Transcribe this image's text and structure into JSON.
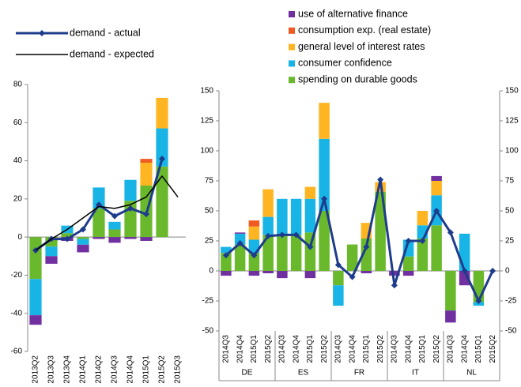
{
  "chart_data": [
    {
      "type": "bar",
      "categories": [
        "2013Q2",
        "2013Q3",
        "2013Q4",
        "2014Q1",
        "2014Q2",
        "2014Q3",
        "2014Q4",
        "2015Q1",
        "2015Q2",
        "2015Q3"
      ],
      "ylim": [
        -60,
        80
      ],
      "yticks": [
        -60,
        -40,
        -20,
        0,
        20,
        40,
        60,
        80
      ],
      "series": [
        {
          "name": "use of alternative finance",
          "color": "#7030a0",
          "values": [
            -5,
            -4,
            -2,
            -4,
            -1,
            -3,
            -1,
            -2,
            0,
            0
          ]
        },
        {
          "name": "consumption exp. (real estate)",
          "color": "#f05a23",
          "values": [
            0,
            0,
            0,
            0,
            0,
            0,
            0,
            2,
            0,
            0
          ]
        },
        {
          "name": "general level of interest rates",
          "color": "#ffb422",
          "values": [
            0,
            0,
            0,
            0,
            0,
            0,
            0,
            12,
            16,
            0
          ]
        },
        {
          "name": "consumer confidence",
          "color": "#19b4e6",
          "values": [
            -19,
            -5,
            4,
            -3,
            11,
            4,
            11,
            0,
            20,
            0
          ]
        },
        {
          "name": "spending on durable goods",
          "color": "#6ab82c",
          "values": [
            -22,
            -5,
            2,
            -1,
            15,
            4,
            19,
            27,
            37,
            0
          ]
        },
        {
          "name": "demand - actual",
          "type": "line",
          "color": "#1e3c8c",
          "values": [
            -7,
            -1,
            -1,
            4,
            17,
            11,
            15,
            12,
            41,
            null
          ]
        },
        {
          "name": "demand - expected",
          "type": "line",
          "color": "#000000",
          "values": [
            -7,
            -1,
            4,
            10,
            16,
            15,
            17,
            21,
            32,
            21
          ]
        }
      ]
    },
    {
      "type": "bar",
      "categories": [
        "2014Q3",
        "2014Q4",
        "2015Q1",
        "2015Q2",
        "2014Q3",
        "2014Q4",
        "2015Q1",
        "2015Q2",
        "2014Q3",
        "2014Q4",
        "2015Q1",
        "2015Q2",
        "2014Q3",
        "2014Q4",
        "2015Q1",
        "2015Q2",
        "2014Q3",
        "2014Q4",
        "2015Q1",
        "2015Q2"
      ],
      "groups": [
        "DE",
        "ES",
        "FR",
        "IT",
        "NL"
      ],
      "ylim": [
        -50,
        150
      ],
      "yticks": [
        -50,
        -25,
        0,
        25,
        50,
        75,
        100,
        125,
        150
      ],
      "y2lim": [
        -50,
        150
      ],
      "y2ticks": [
        -50,
        -25,
        0,
        25,
        50,
        75,
        100,
        125,
        150
      ],
      "series": [
        {
          "name": "use of alternative finance",
          "color": "#7030a0",
          "values": [
            -4,
            1,
            -4,
            -2,
            -6,
            0,
            -6,
            0,
            0,
            0,
            -2,
            0,
            -4,
            -4,
            0,
            4,
            -10,
            -12,
            0,
            0
          ]
        },
        {
          "name": "consumption exp. (real estate)",
          "color": "#f05a23",
          "values": [
            0,
            0,
            5,
            0,
            0,
            0,
            0,
            0,
            0,
            0,
            0,
            0,
            0,
            0,
            0,
            0,
            0,
            0,
            0,
            0
          ]
        },
        {
          "name": "general level of interest rates",
          "color": "#ffb422",
          "values": [
            0,
            0,
            11,
            23,
            0,
            0,
            10,
            30,
            0,
            0,
            13,
            8,
            0,
            0,
            12,
            12,
            0,
            0,
            0,
            0
          ]
        },
        {
          "name": "consumer confidence",
          "color": "#19b4e6",
          "values": [
            5,
            9,
            11,
            15,
            30,
            30,
            28,
            60,
            -17,
            0,
            0,
            0,
            0,
            14,
            11,
            25,
            0,
            31,
            -3,
            0
          ]
        },
        {
          "name": "spending on durable goods",
          "color": "#6ab82c",
          "values": [
            15,
            22,
            15,
            30,
            30,
            30,
            32,
            50,
            -12,
            22,
            27,
            66,
            0,
            12,
            27,
            38,
            -33,
            0,
            -26,
            0
          ]
        },
        {
          "name": "demand - actual",
          "type": "line",
          "axis": "y2",
          "color": "#1e3c8c",
          "values": [
            13,
            23,
            13,
            29,
            30,
            30,
            20,
            60,
            5,
            -5,
            20,
            76,
            -12,
            25,
            25,
            50,
            32,
            0,
            -25,
            0
          ]
        }
      ]
    }
  ]
}
